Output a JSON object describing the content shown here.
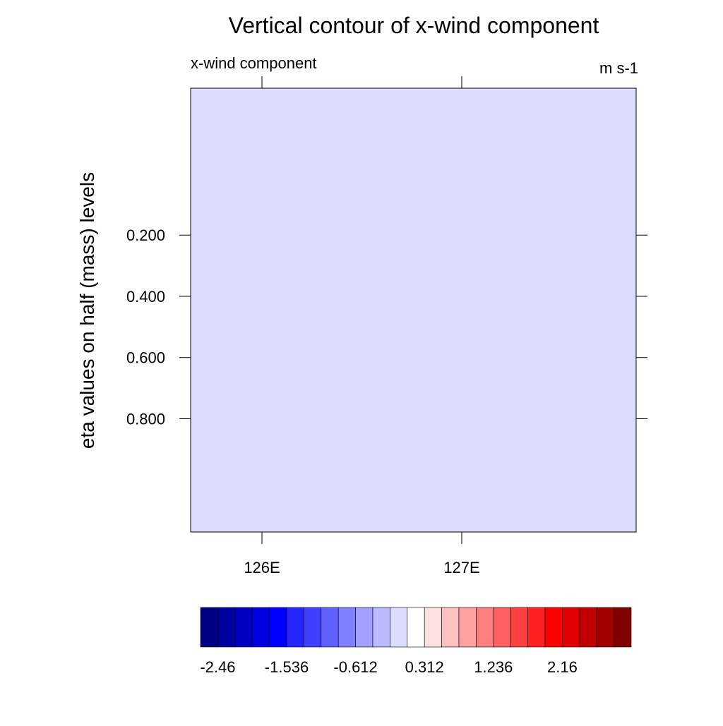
{
  "chart_data": {
    "type": "contour",
    "title": "Vertical contour of x-wind component",
    "left_string": "x-wind component",
    "right_string": "m s-1",
    "ylabel": "eta values on half (mass) levels",
    "field_color": "#dcdcfc",
    "xlim": [
      125.643,
      127.873
    ],
    "xticks": [
      {
        "value": 126,
        "label": "126E"
      },
      {
        "value": 127,
        "label": "127E"
      }
    ],
    "ylim": [
      -0.28,
      1.17
    ],
    "yticks": [
      {
        "value": 0.2,
        "label": "0.200"
      },
      {
        "value": 0.4,
        "label": "0.400"
      },
      {
        "value": 0.6,
        "label": "0.600"
      },
      {
        "value": 0.8,
        "label": "0.800"
      }
    ],
    "colorbar": {
      "colors": [
        "#000080",
        "#0000a0",
        "#0000c0",
        "#0000e0",
        "#0000ff",
        "#2525ff",
        "#4040ff",
        "#6060ff",
        "#8080ff",
        "#a0a0ff",
        "#babafd",
        "#dcdcfc",
        "#ffffff",
        "#fde0e0",
        "#fdc0c0",
        "#fda0a0",
        "#fd8080",
        "#fd6060",
        "#fd4040",
        "#ff2020",
        "#ff0000",
        "#e00000",
        "#c00000",
        "#a00000",
        "#800000"
      ],
      "ticks": [
        -2.46,
        -1.536,
        -0.612,
        0.312,
        1.236,
        2.16
      ]
    }
  }
}
